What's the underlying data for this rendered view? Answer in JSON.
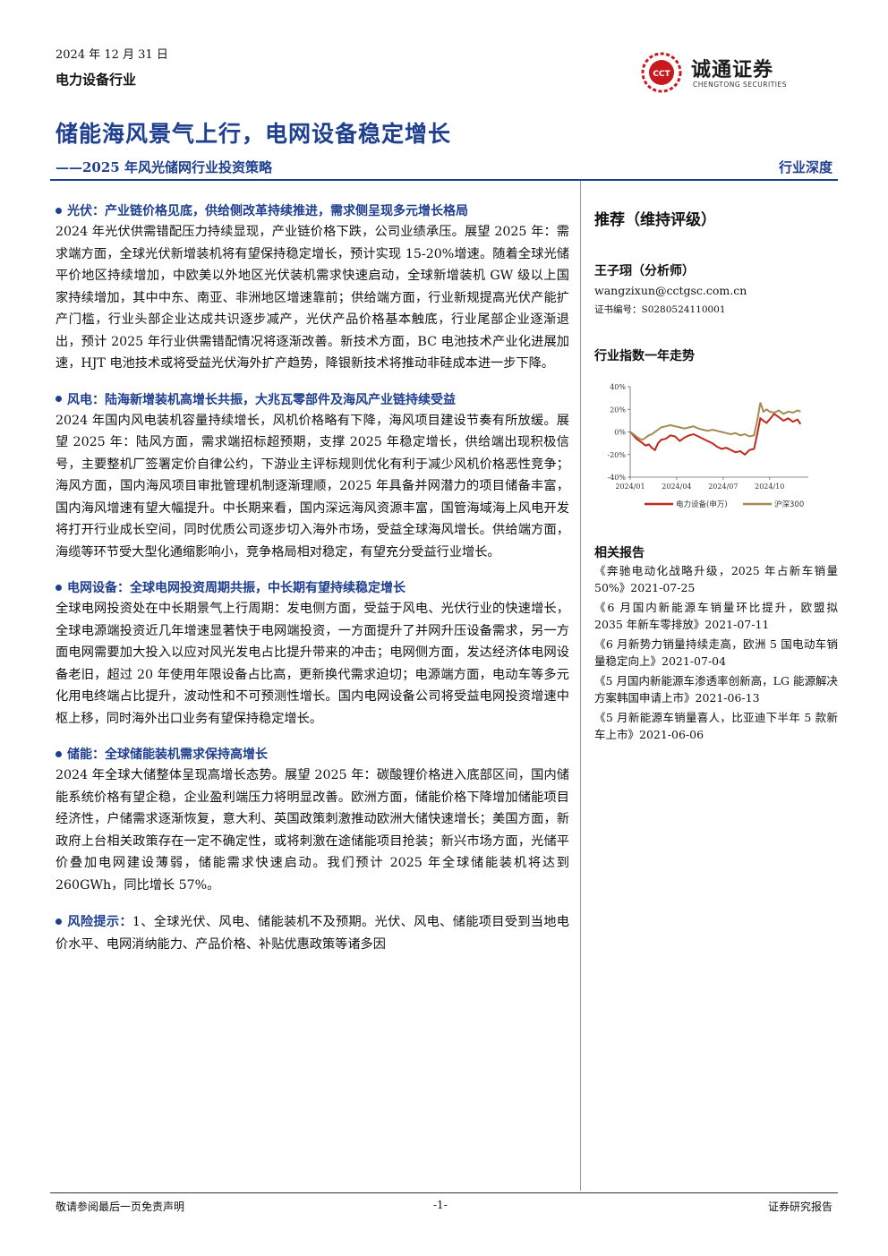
{
  "header": {
    "date": "2024 年 12 月 31 日",
    "industry": "电力设备行业",
    "logo_cn": "诚通证券",
    "logo_en": "CHENGTONG SECURITIES",
    "logo_mark": "CCT",
    "title": "储能海风景气上行，电网设备稳定增长",
    "subtitle": "——2025 年风光储网行业投资策略",
    "report_type": "行业深度"
  },
  "sections": [
    {
      "heading": "光伏：产业链价格见底，供给侧改革持续推进，需求侧呈现多元增长格局",
      "body": "2024 年光伏供需错配压力持续显现，产业链价格下跌，公司业绩承压。展望 2025 年：需求端方面，全球光伏新增装机将有望保持稳定增长，预计实现 15-20%增速。随着全球光储平价地区持续增加，中欧美以外地区光伏装机需求快速启动，全球新增装机 GW 级以上国家持续增加，其中中东、南亚、非洲地区增速靠前；供给端方面，行业新规提高光伏产能扩产门槛，行业头部企业达成共识逐步减产，光伏产品价格基本触底，行业尾部企业逐渐退出，预计 2025 年行业供需错配情况将逐渐改善。新技术方面，BC 电池技术产业化进展加速，HJT 电池技术或将受益光伏海外扩产趋势，降银新技术将推动非硅成本进一步下降。"
    },
    {
      "heading": "风电：陆海新增装机高增长共振，大兆瓦零部件及海风产业链持续受益",
      "body": "2024 年国内风电装机容量持续增长，风机价格略有下降，海风项目建设节奏有所放缓。展望 2025 年：陆风方面，需求端招标超预期，支撑 2025 年稳定增长，供给端出现积极信号，主要整机厂签署定价自律公约，下游业主评标规则优化有利于减少风机价格恶性竞争；海风方面，国内海风项目审批管理机制逐渐理顺，2025 年具备并网潜力的项目储备丰富，国内海风增速有望大幅提升。中长期来看，国内深远海风资源丰富，国管海域海上风电开发将打开行业成长空间，同时优质公司逐步切入海外市场，受益全球海风增长。供给端方面，海缆等环节受大型化通缩影响小，竞争格局相对稳定，有望充分受益行业增长。"
    },
    {
      "heading": "电网设备：全球电网投资周期共振，中长期有望持续稳定增长",
      "body": "全球电网投资处在中长期景气上行周期：发电侧方面，受益于风电、光伏行业的快速增长，全球电源端投资近几年增速显著快于电网端投资，一方面提升了并网升压设备需求，另一方面电网需要加大投入以应对风光发电占比提升带来的冲击；电网侧方面，发达经济体电网设备老旧，超过 20 年使用年限设备占比高，更新换代需求迫切；电源端方面，电动车等多元化用电终端占比提升，波动性和不可预测性增长。国内电网设备公司将受益电网投资增速中枢上移，同时海外出口业务有望保持稳定增长。"
    },
    {
      "heading": "储能：全球储能装机需求保持高增长",
      "body": "2024 年全球大储整体呈现高增长态势。展望 2025 年：碳酸锂价格进入底部区间，国内储能系统价格有望企稳，企业盈利端压力将明显改善。欧洲方面，储能价格下降增加储能项目经济性，户储需求逐渐恢复，意大利、英国政策刺激推动欧洲大储快速增长；美国方面，新政府上台相关政策存在一定不确定性，或将刺激在途储能项目抢装；新兴市场方面，光储平价叠加电网建设薄弱，储能需求快速启动。我们预计 2025 年全球储能装机将达到 260GWh，同比增长 57%。"
    }
  ],
  "risk": {
    "label": "风险提示：",
    "body": "1、全球光伏、风电、储能装机不及预期。光伏、风电、储能项目受到当地电价水平、电网消纳能力、产品价格、补贴优惠政策等诸多因"
  },
  "sidebar": {
    "rating": "推荐（维持评级）",
    "analyst_name": "王子珝（分析师）",
    "analyst_email": "wangzixun@cctgsc.com.cn",
    "analyst_cert": "证书编号：S0280524110001",
    "chart_title": "行业指数一年走势",
    "related_title": "相关报告",
    "related": [
      "《奔驰电动化战略升级，2025 年占新车销量 50%》2021-07-25",
      "《6 月国内新能源车销量环比提升，欧盟拟 2035 年新车零排放》2021-07-11",
      "《6 月新势力销量持续走高，欧洲 5 国电动车销量稳定向上》2021-07-04",
      "《5 月国内新能源车渗透率创新高，LG 能源解决方案韩国申请上市》2021-06-13",
      "《5 月新能源车销量喜人，比亚迪下半年 5 款新车上市》2021-06-06"
    ]
  },
  "chart_data": {
    "type": "line",
    "title": "",
    "ylim": [
      -40,
      40
    ],
    "yticks": [
      "40%",
      "20%",
      "0%",
      "-20%",
      "-40%"
    ],
    "ytick_values": [
      40,
      20,
      0,
      -20,
      -40
    ],
    "xticks": [
      "2024/01",
      "2024/04",
      "2024/07",
      "2024/10"
    ],
    "xtick_values": [
      0,
      3,
      6,
      9
    ],
    "xlim": [
      0,
      11.5
    ],
    "grid": false,
    "legend_position": "bottom",
    "series": [
      {
        "name": "电力设备(申万)",
        "color": "#c0291e",
        "x": [
          0,
          0.2,
          0.4,
          0.6,
          0.8,
          1.0,
          1.2,
          1.4,
          1.6,
          1.8,
          2.0,
          2.3,
          2.6,
          2.9,
          3.2,
          3.5,
          3.8,
          4.1,
          4.4,
          4.7,
          5.0,
          5.3,
          5.6,
          5.9,
          6.2,
          6.5,
          6.8,
          7.1,
          7.4,
          7.7,
          8.0,
          8.2,
          8.4,
          8.6,
          8.8,
          9.0,
          9.3,
          9.6,
          9.9,
          10.2,
          10.5,
          10.8,
          11.0
        ],
        "values": [
          0,
          -3,
          -6,
          -8,
          -10,
          -12,
          -11,
          -14,
          -16,
          -10,
          -7,
          -6,
          -3,
          -4,
          -8,
          -5,
          -3,
          -2,
          -4,
          -6,
          -8,
          -10,
          -13,
          -15,
          -14,
          -16,
          -18,
          -17,
          -20,
          -16,
          -15,
          -2,
          12,
          10,
          8,
          11,
          16,
          13,
          10,
          12,
          9,
          11,
          7
        ]
      },
      {
        "name": "沪深300",
        "color": "#a68a55",
        "x": [
          0,
          0.2,
          0.4,
          0.6,
          0.8,
          1.0,
          1.2,
          1.4,
          1.6,
          1.8,
          2.0,
          2.3,
          2.6,
          2.9,
          3.2,
          3.5,
          3.8,
          4.1,
          4.4,
          4.7,
          5.0,
          5.3,
          5.6,
          5.9,
          6.2,
          6.5,
          6.8,
          7.1,
          7.4,
          7.7,
          8.0,
          8.2,
          8.4,
          8.6,
          8.8,
          9.0,
          9.3,
          9.6,
          9.9,
          10.2,
          10.5,
          10.8,
          11.0
        ],
        "values": [
          0,
          -2,
          -4,
          -6,
          -7,
          -5,
          -3,
          -2,
          0,
          2,
          4,
          5,
          6,
          5,
          4,
          3,
          4,
          5,
          3,
          2,
          1,
          2,
          1,
          0,
          -1,
          -2,
          -1,
          -3,
          -2,
          -4,
          -3,
          10,
          26,
          18,
          20,
          18,
          17,
          19,
          16,
          18,
          17,
          19,
          18
        ]
      }
    ]
  },
  "footer": {
    "disclaimer": "敬请参阅最后一页免责声明",
    "page": "-1-",
    "label": "证券研究报告"
  }
}
